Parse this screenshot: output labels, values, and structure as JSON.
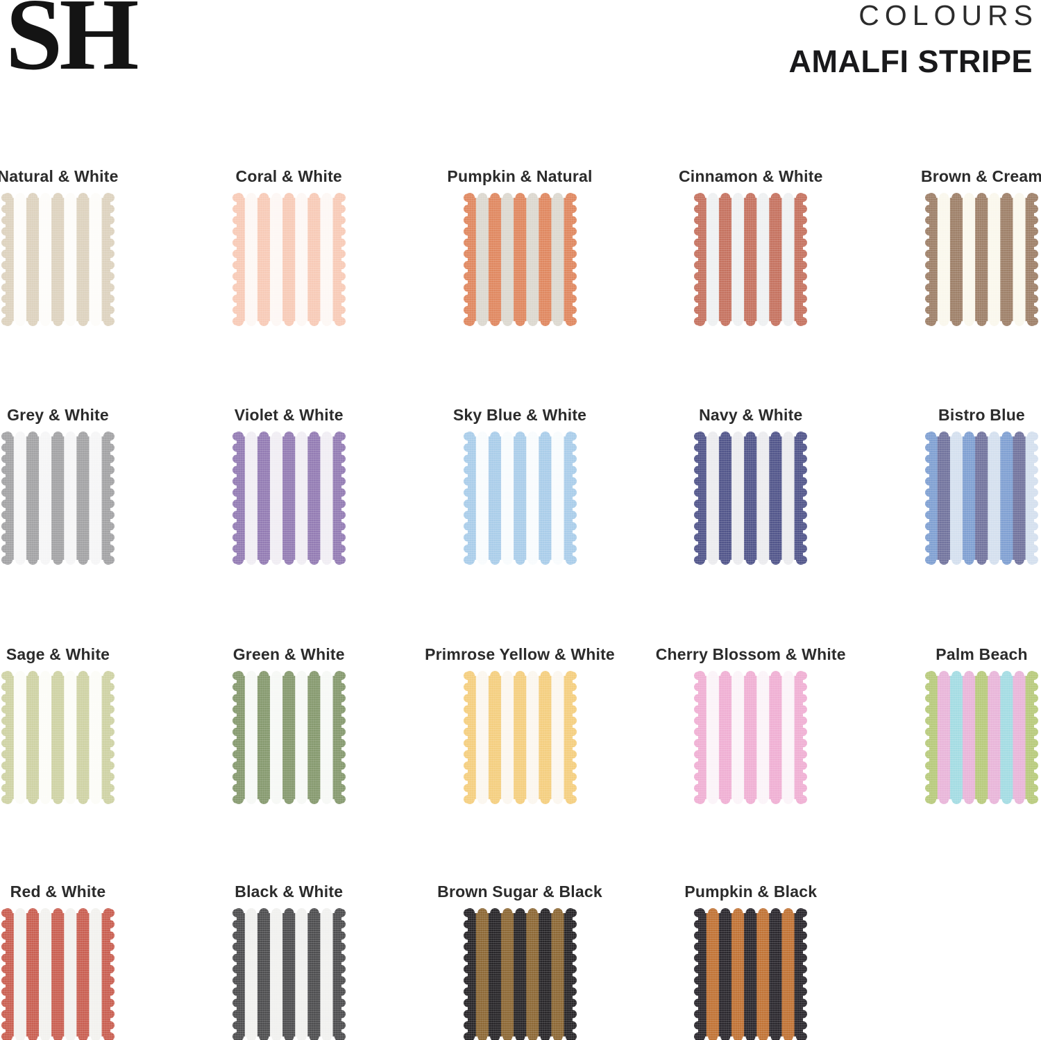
{
  "header": {
    "logo": "SH",
    "collection_label": "COLOURS",
    "title": "AMALFI STRIPE"
  },
  "swatches": [
    {
      "name": "Natural & White",
      "stripes": [
        "#dcd1bd",
        "#fdfcf9",
        "#dcd1bd",
        "#fdfcf9",
        "#dcd1bd",
        "#fdfcf9",
        "#dcd1bd",
        "#fdfcf9",
        "#dcd1bd"
      ]
    },
    {
      "name": "Coral & White",
      "stripes": [
        "#f7c9b5",
        "#fdf7f4",
        "#f7c9b5",
        "#fdf7f4",
        "#f7c9b5",
        "#fdf7f4",
        "#f7c9b5",
        "#fdf7f4",
        "#f7c9b5"
      ]
    },
    {
      "name": "Pumpkin & Natural",
      "stripes": [
        "#df855c",
        "#dbd7ce",
        "#df855c",
        "#dbd7ce",
        "#df855c",
        "#dbd7ce",
        "#df855c",
        "#dbd7ce",
        "#df855c"
      ]
    },
    {
      "name": "Cinnamon & White",
      "stripes": [
        "#c46f5c",
        "#eef0f1",
        "#c46f5c",
        "#eef0f1",
        "#c46f5c",
        "#eef0f1",
        "#c46f5c",
        "#eef0f1",
        "#c46f5c"
      ]
    },
    {
      "name": "Brown & Cream",
      "stripes": [
        "#9c7d65",
        "#faf7ec",
        "#9c7d65",
        "#faf7ec",
        "#9c7d65",
        "#faf7ec",
        "#9c7d65",
        "#faf7ec",
        "#9c7d65"
      ]
    },
    {
      "name": "Grey & White",
      "stripes": [
        "#a1a1a3",
        "#f5f5f6",
        "#a1a1a3",
        "#f5f5f6",
        "#a1a1a3",
        "#f5f5f6",
        "#a1a1a3",
        "#f5f5f6",
        "#a1a1a3"
      ]
    },
    {
      "name": "Violet & White",
      "stripes": [
        "#9179b2",
        "#f0edf3",
        "#9179b2",
        "#f0edf3",
        "#9179b2",
        "#f0edf3",
        "#9179b2",
        "#f0edf3",
        "#9179b2"
      ]
    },
    {
      "name": "Sky Blue & White",
      "stripes": [
        "#a8cce9",
        "#f8fbfd",
        "#a8cce9",
        "#f8fbfd",
        "#a8cce9",
        "#f8fbfd",
        "#a8cce9",
        "#f8fbfd",
        "#a8cce9"
      ]
    },
    {
      "name": "Navy & White",
      "stripes": [
        "#4e5288",
        "#ebebee",
        "#4e5288",
        "#ebebee",
        "#4e5288",
        "#ebebee",
        "#4e5288",
        "#ebebee",
        "#4e5288"
      ]
    },
    {
      "name": "Bistro Blue",
      "stripes": [
        "#7d9ed1",
        "#6f719c",
        "#d3dfee",
        "#7d9ed1",
        "#6f719c",
        "#d3dfee",
        "#7d9ed1",
        "#6f719c",
        "#d3dfee"
      ]
    },
    {
      "name": "Sage & White",
      "stripes": [
        "#cdd1a2",
        "#fcfcf7",
        "#cdd1a2",
        "#fcfcf7",
        "#cdd1a2",
        "#fcfcf7",
        "#cdd1a2",
        "#fcfcf7",
        "#cdd1a2"
      ]
    },
    {
      "name": "Green & White",
      "stripes": [
        "#83976b",
        "#f6f8f5",
        "#83976b",
        "#f6f8f5",
        "#83976b",
        "#f6f8f5",
        "#83976b",
        "#f6f8f5",
        "#83976b"
      ]
    },
    {
      "name": "Primrose Yellow & White",
      "stripes": [
        "#f4cd7c",
        "#fbf6ee",
        "#f4cd7c",
        "#fbf6ee",
        "#f4cd7c",
        "#fbf6ee",
        "#f4cd7c",
        "#fbf6ee",
        "#f4cd7c"
      ]
    },
    {
      "name": "Cherry Blossom & White",
      "stripes": [
        "#efadd2",
        "#fbf3f8",
        "#efadd2",
        "#fbf3f8",
        "#efadd2",
        "#fbf3f8",
        "#efadd2",
        "#fbf3f8",
        "#efadd2"
      ]
    },
    {
      "name": "Palm Beach",
      "stripes": [
        "#b6c979",
        "#e8b3d8",
        "#a1dbe2",
        "#e8b3d8",
        "#b6c979",
        "#e8b3d8",
        "#a1dbe2",
        "#e8b3d8",
        "#b6c979"
      ]
    },
    {
      "name": "Red & White",
      "stripes": [
        "#c85c4e",
        "#f2f1ee",
        "#c85c4e",
        "#f2f1ee",
        "#c85c4e",
        "#f2f1ee",
        "#c85c4e",
        "#f2f1ee",
        "#c85c4e"
      ]
    },
    {
      "name": "Black & White",
      "stripes": [
        "#4a4a4c",
        "#f0f0ee",
        "#4a4a4c",
        "#f0f0ee",
        "#4a4a4c",
        "#f0f0ee",
        "#4a4a4c",
        "#f0f0ee",
        "#4a4a4c"
      ]
    },
    {
      "name": "Brown Sugar & Black",
      "stripes": [
        "#232124",
        "#8a6531",
        "#232124",
        "#8a6531",
        "#232124",
        "#8a6531",
        "#232124",
        "#8a6531",
        "#232124"
      ]
    },
    {
      "name": "Pumpkin & Black",
      "stripes": [
        "#262329",
        "#bf7031",
        "#262329",
        "#bf7031",
        "#262329",
        "#bf7031",
        "#262329",
        "#bf7031",
        "#262329"
      ]
    }
  ]
}
